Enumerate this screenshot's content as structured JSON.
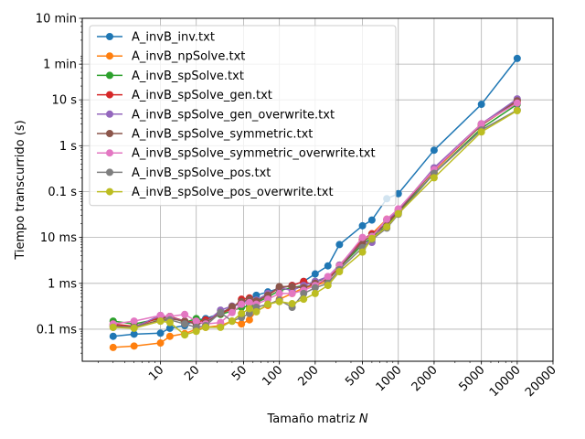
{
  "chart_data": {
    "type": "line",
    "xlabel": "Tamaño matriz N",
    "ylabel": "Tiempo transcurrido (s)",
    "xscale": "log",
    "yscale": "log",
    "xlim": [
      2.2,
      20000
    ],
    "ylim": [
      2e-05,
      600
    ],
    "grid": true,
    "legend_position": "top-left",
    "x_ticks": [
      {
        "value": 10,
        "label": "10"
      },
      {
        "value": 20,
        "label": "20"
      },
      {
        "value": 50,
        "label": "50"
      },
      {
        "value": 100,
        "label": "100"
      },
      {
        "value": 200,
        "label": "200"
      },
      {
        "value": 500,
        "label": "500"
      },
      {
        "value": 1000,
        "label": "1000"
      },
      {
        "value": 2000,
        "label": "2000"
      },
      {
        "value": 5000,
        "label": "5000"
      },
      {
        "value": 10000,
        "label": "10000"
      },
      {
        "value": 20000,
        "label": "20000"
      }
    ],
    "y_ticks": [
      {
        "value": 0.0001,
        "label": "0.1 ms"
      },
      {
        "value": 0.001,
        "label": "1 ms"
      },
      {
        "value": 0.01,
        "label": "10 ms"
      },
      {
        "value": 0.1,
        "label": "0.1 s"
      },
      {
        "value": 1,
        "label": "1 s"
      },
      {
        "value": 10,
        "label": "10 s"
      },
      {
        "value": 60,
        "label": "1 min"
      },
      {
        "value": 600,
        "label": "10 min"
      }
    ],
    "series": [
      {
        "name": "A_invB_inv.txt",
        "color": "#1f77b4",
        "x": [
          4,
          6,
          10,
          12,
          16,
          20,
          24,
          32,
          40,
          48,
          56,
          64,
          80,
          100,
          128,
          160,
          200,
          256,
          320,
          500,
          600,
          800,
          1000,
          2000,
          5000,
          10000
        ],
        "y": [
          7e-05,
          7.8e-05,
          8.2e-05,
          0.000105,
          0.00012,
          0.00016,
          0.00017,
          0.00022,
          0.0003,
          0.00038,
          0.00045,
          0.00055,
          0.00065,
          0.00078,
          0.0009,
          0.0011,
          0.0016,
          0.0024,
          0.007,
          0.018,
          0.024,
          0.07,
          0.09,
          0.8,
          8,
          80
        ]
      },
      {
        "name": "A_invB_npSolve.txt",
        "color": "#ff7f0e",
        "x": [
          4,
          6,
          10,
          12,
          16,
          20,
          24,
          32,
          40,
          48,
          56,
          64,
          80,
          100,
          128,
          160,
          200,
          256,
          320,
          500,
          600,
          800,
          1000,
          2000,
          5000,
          10000
        ],
        "y": [
          4e-05,
          4.3e-05,
          5e-05,
          7e-05,
          8e-05,
          0.0001,
          0.00011,
          0.00012,
          0.00015,
          0.00013,
          0.00016,
          0.00025,
          0.00033,
          0.00045,
          0.0006,
          0.0008,
          0.0009,
          0.0011,
          0.0025,
          0.009,
          0.012,
          0.025,
          0.04,
          0.28,
          2.8,
          9
        ]
      },
      {
        "name": "A_invB_spSolve.txt",
        "color": "#2ca02c",
        "x": [
          4,
          6,
          10,
          12,
          16,
          20,
          24,
          32,
          40,
          48,
          56,
          64,
          80,
          100,
          128,
          160,
          200,
          256,
          320,
          500,
          600,
          800,
          1000,
          2000,
          5000,
          10000
        ],
        "y": [
          0.00015,
          0.00013,
          0.00017,
          0.00019,
          0.00014,
          0.00017,
          0.00015,
          0.00021,
          0.00025,
          0.0003,
          0.00032,
          0.00038,
          0.0005,
          0.0007,
          0.0008,
          0.0009,
          0.0011,
          0.0013,
          0.0022,
          0.007,
          0.01,
          0.018,
          0.035,
          0.25,
          2.4,
          8
        ]
      },
      {
        "name": "A_invB_spSolve_gen.txt",
        "color": "#d62728",
        "x": [
          4,
          6,
          10,
          12,
          16,
          20,
          24,
          32,
          40,
          48,
          56,
          64,
          80,
          100,
          128,
          160,
          200,
          256,
          320,
          500,
          600,
          800,
          1000,
          2000,
          5000,
          10000
        ],
        "y": [
          0.00013,
          0.000115,
          0.00018,
          0.00019,
          0.00015,
          0.00014,
          0.00016,
          0.00022,
          0.00028,
          0.00045,
          0.00048,
          0.0004,
          0.00055,
          0.0008,
          0.0009,
          0.0011,
          0.0009,
          0.0013,
          0.0024,
          0.009,
          0.012,
          0.02,
          0.04,
          0.32,
          3,
          10
        ]
      },
      {
        "name": "A_invB_spSolve_gen_overwrite.txt",
        "color": "#9467bd",
        "x": [
          4,
          6,
          10,
          12,
          16,
          20,
          24,
          32,
          40,
          48,
          56,
          64,
          80,
          100,
          128,
          160,
          200,
          256,
          320,
          500,
          600,
          800,
          1000,
          2000,
          5000,
          10000
        ],
        "y": [
          0.00012,
          0.00011,
          0.0002,
          0.00018,
          0.00015,
          0.00013,
          0.00014,
          0.00026,
          0.00032,
          0.00035,
          0.0004,
          0.00043,
          0.0006,
          0.0008,
          0.0007,
          0.0009,
          0.0011,
          0.0014,
          0.0025,
          0.008,
          0.0078,
          0.024,
          0.038,
          0.33,
          3,
          10.5
        ]
      },
      {
        "name": "A_invB_spSolve_symmetric.txt",
        "color": "#8c564b",
        "x": [
          4,
          6,
          10,
          12,
          16,
          20,
          24,
          32,
          40,
          48,
          56,
          64,
          80,
          100,
          128,
          160,
          200,
          256,
          320,
          500,
          600,
          800,
          1000,
          2000,
          5000,
          10000
        ],
        "y": [
          0.00012,
          0.00011,
          0.00016,
          0.00017,
          0.00015,
          0.00013,
          0.00014,
          0.00022,
          0.00031,
          0.0004,
          0.00045,
          0.00041,
          0.00055,
          0.00085,
          0.00085,
          0.0008,
          0.001,
          0.0012,
          0.0022,
          0.008,
          0.011,
          0.02,
          0.036,
          0.3,
          2.8,
          9.5
        ]
      },
      {
        "name": "A_invB_spSolve_symmetric_overwrite.txt",
        "color": "#e377c2",
        "x": [
          4,
          6,
          10,
          12,
          16,
          20,
          24,
          32,
          40,
          48,
          56,
          64,
          80,
          100,
          128,
          160,
          200,
          256,
          320,
          500,
          600,
          800,
          1000,
          2000,
          5000,
          10000
        ],
        "y": [
          0.00013,
          0.00015,
          0.0002,
          0.00019,
          0.00021,
          0.00015,
          0.00013,
          0.00014,
          0.00023,
          0.00035,
          0.00038,
          0.00035,
          0.00045,
          0.0006,
          0.0006,
          0.0007,
          0.0009,
          0.0014,
          0.0024,
          0.01,
          0.0105,
          0.025,
          0.042,
          0.3,
          3,
          8.5
        ]
      },
      {
        "name": "A_invB_spSolve_pos.txt",
        "color": "#7f7f7f",
        "x": [
          4,
          6,
          10,
          12,
          16,
          20,
          24,
          32,
          40,
          48,
          56,
          64,
          80,
          100,
          128,
          160,
          200,
          256,
          320,
          500,
          600,
          800,
          1000,
          2000,
          5000,
          10000
        ],
        "y": [
          0.00011,
          0.00011,
          0.00015,
          0.00016,
          0.00013,
          0.00011,
          0.00012,
          0.00023,
          0.00015,
          0.00018,
          0.00022,
          0.0003,
          0.00035,
          0.00043,
          0.0003,
          0.0006,
          0.0008,
          0.001,
          0.002,
          0.006,
          0.009,
          0.016,
          0.032,
          0.25,
          2.2,
          6
        ]
      },
      {
        "name": "A_invB_spSolve_pos_overwrite.txt",
        "color": "#bcbd22",
        "x": [
          4,
          6,
          10,
          12,
          16,
          20,
          24,
          32,
          40,
          48,
          56,
          64,
          80,
          100,
          128,
          160,
          200,
          256,
          320,
          500,
          600,
          800,
          1000,
          2000,
          5000,
          10000
        ],
        "y": [
          0.00011,
          0.000105,
          0.00015,
          0.00014,
          7.5e-05,
          9e-05,
          0.00011,
          0.00011,
          0.00015,
          0.00022,
          0.00028,
          0.00024,
          0.00035,
          0.0004,
          0.00036,
          0.00045,
          0.0006,
          0.0009,
          0.0018,
          0.0048,
          0.0095,
          0.017,
          0.033,
          0.2,
          2,
          5.8
        ]
      }
    ]
  }
}
